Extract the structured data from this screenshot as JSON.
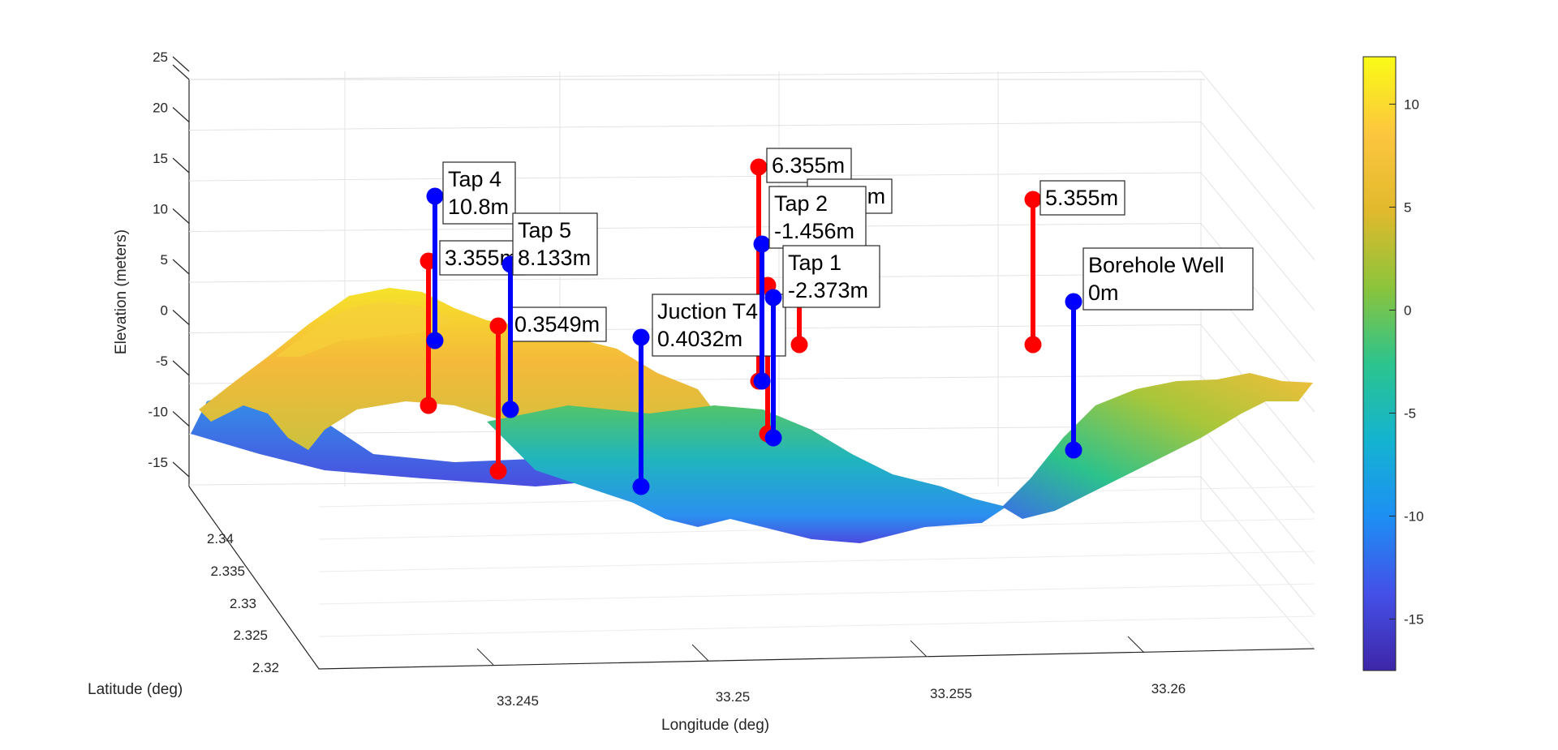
{
  "chart_data": {
    "type": "surface-3d",
    "title": "",
    "xlabel": "Longitude (deg)",
    "ylabel": "Latitude (deg)",
    "zlabel": "Elevation (meters)",
    "x_ticks": [
      "33.245",
      "33.25",
      "33.255",
      "33.26"
    ],
    "y_ticks": [
      "2.32",
      "2.325",
      "2.33",
      "2.335",
      "2.34"
    ],
    "z_ticks": [
      "-15",
      "-10",
      "-5",
      "0",
      "5",
      "10",
      "15",
      "20",
      "25"
    ],
    "zlim": [
      -15,
      25
    ],
    "grid": true,
    "colormap": "parula",
    "colorbar": {
      "ticks": [
        "-15",
        "-10",
        "-5",
        "0",
        "5",
        "10"
      ],
      "range": [
        -17.5,
        12.3
      ],
      "colors": [
        "#3e26a8",
        "#4450e8",
        "#1d8ff4",
        "#14b3d0",
        "#2cc48d",
        "#8cc43b",
        "#e2b92c",
        "#fcc63e",
        "#f9fb15"
      ]
    },
    "blue_stems": [
      {
        "name": "Tap 4",
        "label_lines": [
          "Tap 4",
          "10.8m"
        ],
        "height": 10.8
      },
      {
        "name": "Tap 5",
        "label_lines": [
          "Tap 5",
          "8.133m"
        ],
        "height": 8.133
      },
      {
        "name": "Juction T4",
        "label_lines": [
          "Juction T4",
          "0.4032m"
        ],
        "height": 0.4032
      },
      {
        "name": "Tap 2",
        "label_lines": [
          "Tap 2",
          "-1.456m"
        ],
        "height": -1.456
      },
      {
        "name": "Tap 1",
        "label_lines": [
          "Tap 1",
          "-2.373m"
        ],
        "height": -2.373
      },
      {
        "name": "Borehole Well",
        "label_lines": [
          "Borehole Well",
          "0m"
        ],
        "height": 0
      }
    ],
    "red_stems": [
      {
        "label_lines": [
          "3.355m"
        ],
        "height": 3.355
      },
      {
        "label_lines": [
          "0.3549m"
        ],
        "height": 0.3549
      },
      {
        "label_lines": [
          "6.355m"
        ],
        "height": 6.355
      },
      {
        "label_lines": [
          "3.355m"
        ],
        "height": 3.355
      },
      {
        "label_lines": [],
        "height": null
      },
      {
        "label_lines": [
          "5.355m"
        ],
        "height": 5.355
      }
    ],
    "stem_colors": {
      "blue": "#0000ff",
      "red": "#ff0000"
    }
  }
}
